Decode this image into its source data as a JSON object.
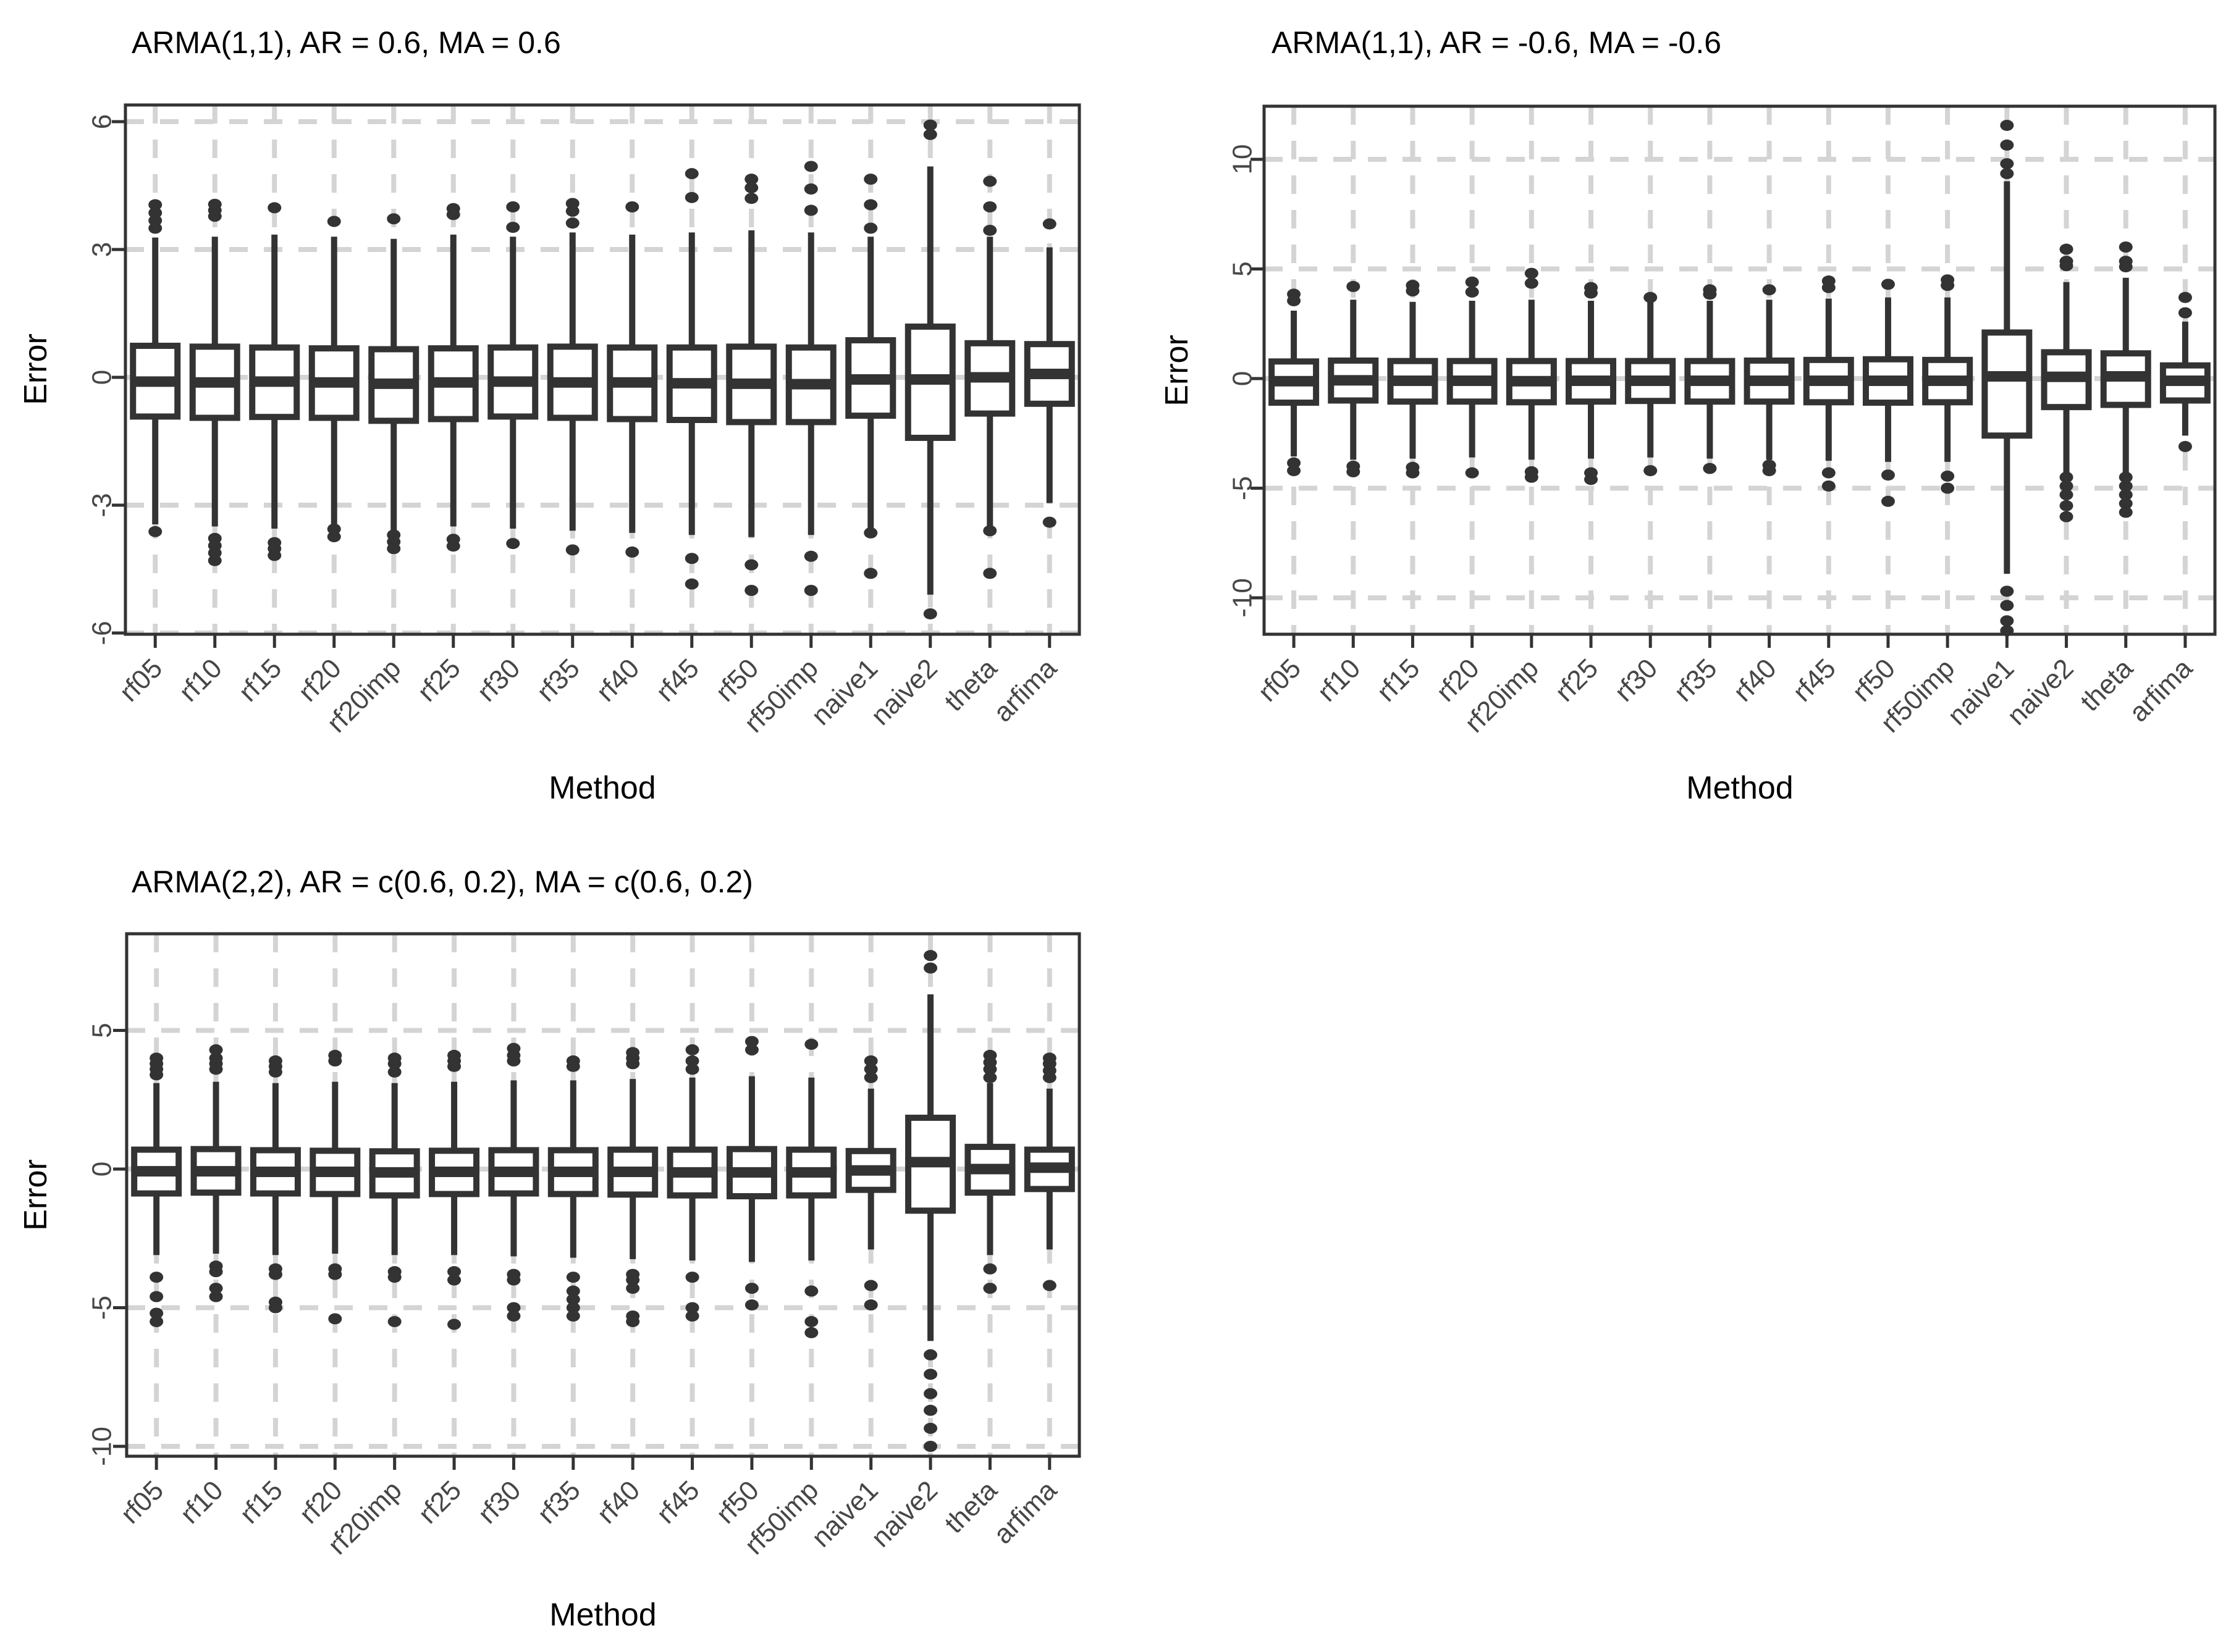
{
  "colors": {
    "box": "#333333",
    "grid": "#d4d4d4",
    "tick_label": "#464646",
    "text": "#000000",
    "background": "#ffffff"
  },
  "chart_data": [
    {
      "type": "boxplot",
      "title": "ARMA(1,1), AR = 0.6, MA = 0.6",
      "xlabel": "Method",
      "ylabel": "Error",
      "ylim": [
        -6.1,
        6.4
      ],
      "yticks": [
        6,
        3,
        0,
        -3,
        -6
      ],
      "grid": "dashed-major-both",
      "legend": "none",
      "categories": [
        "rf05",
        "rf10",
        "rf15",
        "rf20",
        "rf20imp",
        "rf25",
        "rf30",
        "rf35",
        "rf40",
        "rf45",
        "rf50",
        "rf50imp",
        "naive1",
        "naive2",
        "theta",
        "arfima"
      ],
      "boxes": [
        {
          "low": -3.45,
          "q1": -0.92,
          "median": -0.1,
          "q3": 0.74,
          "high": 3.28,
          "outliers": [
            3.5,
            3.68,
            3.86,
            4.05,
            -3.62
          ]
        },
        {
          "low": -3.5,
          "q1": -0.95,
          "median": -0.12,
          "q3": 0.72,
          "high": 3.3,
          "outliers": [
            3.78,
            3.92,
            4.06,
            -3.78,
            -3.95,
            -4.12,
            -4.3
          ]
        },
        {
          "low": -3.55,
          "q1": -0.93,
          "median": -0.1,
          "q3": 0.7,
          "high": 3.35,
          "outliers": [
            3.98,
            -3.88,
            -4.02,
            -4.18
          ]
        },
        {
          "low": -3.45,
          "q1": -0.95,
          "median": -0.12,
          "q3": 0.68,
          "high": 3.3,
          "outliers": [
            3.66,
            -3.56,
            -3.74
          ]
        },
        {
          "low": -3.6,
          "q1": -1.02,
          "median": -0.15,
          "q3": 0.66,
          "high": 3.25,
          "outliers": [
            3.72,
            -3.7,
            -3.86,
            -4.02
          ]
        },
        {
          "low": -3.5,
          "q1": -0.98,
          "median": -0.12,
          "q3": 0.68,
          "high": 3.35,
          "outliers": [
            3.82,
            3.96,
            -3.8,
            -3.96
          ]
        },
        {
          "low": -3.55,
          "q1": -0.92,
          "median": -0.1,
          "q3": 0.7,
          "high": 3.3,
          "outliers": [
            3.52,
            4.0,
            -3.9
          ]
        },
        {
          "low": -3.6,
          "q1": -0.95,
          "median": -0.12,
          "q3": 0.72,
          "high": 3.4,
          "outliers": [
            3.62,
            3.9,
            4.08,
            -4.05
          ]
        },
        {
          "low": -3.65,
          "q1": -0.98,
          "median": -0.12,
          "q3": 0.7,
          "high": 3.35,
          "outliers": [
            4.0,
            -4.1
          ]
        },
        {
          "low": -3.7,
          "q1": -1.0,
          "median": -0.14,
          "q3": 0.7,
          "high": 3.4,
          "outliers": [
            4.22,
            4.78,
            -4.25,
            -4.85
          ]
        },
        {
          "low": -3.75,
          "q1": -1.05,
          "median": -0.15,
          "q3": 0.72,
          "high": 3.45,
          "outliers": [
            4.2,
            4.45,
            4.65,
            -4.4,
            -5.0
          ]
        },
        {
          "low": -3.7,
          "q1": -1.05,
          "median": -0.16,
          "q3": 0.7,
          "high": 3.4,
          "outliers": [
            3.92,
            4.42,
            4.95,
            -4.2,
            -5.0
          ]
        },
        {
          "low": -3.55,
          "q1": -0.9,
          "median": -0.05,
          "q3": 0.87,
          "high": 3.3,
          "outliers": [
            3.5,
            4.05,
            4.65,
            -3.65,
            -4.6
          ]
        },
        {
          "low": -5.1,
          "q1": -1.42,
          "median": -0.05,
          "q3": 1.19,
          "high": 4.95,
          "outliers": [
            5.7,
            5.92,
            -5.55
          ]
        },
        {
          "low": -3.55,
          "q1": -0.85,
          "median": 0.0,
          "q3": 0.8,
          "high": 3.3,
          "outliers": [
            3.45,
            4.0,
            4.6,
            -3.6,
            -4.6
          ]
        },
        {
          "low": -2.95,
          "q1": -0.62,
          "median": 0.08,
          "q3": 0.78,
          "high": 3.05,
          "outliers": [
            3.6,
            -3.4
          ]
        }
      ]
    },
    {
      "type": "boxplot",
      "title": "ARMA(1,1), AR = -0.6, MA = -0.6",
      "xlabel": "Method",
      "ylabel": "Error",
      "ylim": [
        -11.7,
        12.4
      ],
      "yticks": [
        10,
        5,
        0,
        -5,
        -10
      ],
      "grid": "dashed-major-both",
      "legend": "none",
      "categories": [
        "rf05",
        "rf10",
        "rf15",
        "rf20",
        "rf20imp",
        "rf25",
        "rf30",
        "rf35",
        "rf40",
        "rf45",
        "rf50",
        "rf50imp",
        "naive1",
        "naive2",
        "theta",
        "arfima"
      ],
      "boxes": [
        {
          "low": -3.55,
          "q1": -1.1,
          "median": -0.12,
          "q3": 0.78,
          "high": 3.1,
          "outliers": [
            3.55,
            3.85,
            -3.85,
            -4.2
          ]
        },
        {
          "low": -3.7,
          "q1": -1.0,
          "median": -0.08,
          "q3": 0.82,
          "high": 3.6,
          "outliers": [
            4.2,
            -4.0,
            -4.25
          ]
        },
        {
          "low": -3.65,
          "q1": -1.05,
          "median": -0.1,
          "q3": 0.8,
          "high": 3.5,
          "outliers": [
            4.0,
            4.25,
            -4.05,
            -4.3
          ]
        },
        {
          "low": -3.6,
          "q1": -1.05,
          "median": -0.1,
          "q3": 0.8,
          "high": 3.55,
          "outliers": [
            3.95,
            4.4,
            -4.3
          ]
        },
        {
          "low": -3.7,
          "q1": -1.08,
          "median": -0.12,
          "q3": 0.8,
          "high": 3.6,
          "outliers": [
            4.35,
            4.8,
            -4.25,
            -4.5
          ]
        },
        {
          "low": -3.65,
          "q1": -1.05,
          "median": -0.1,
          "q3": 0.8,
          "high": 3.55,
          "outliers": [
            3.9,
            4.15,
            -4.3,
            -4.6
          ]
        },
        {
          "low": -3.6,
          "q1": -1.02,
          "median": -0.1,
          "q3": 0.8,
          "high": 3.5,
          "outliers": [
            3.7,
            -4.2
          ]
        },
        {
          "low": -3.65,
          "q1": -1.05,
          "median": -0.1,
          "q3": 0.8,
          "high": 3.55,
          "outliers": [
            3.85,
            4.05,
            -4.1
          ]
        },
        {
          "low": -3.7,
          "q1": -1.05,
          "median": -0.1,
          "q3": 0.82,
          "high": 3.6,
          "outliers": [
            4.05,
            -3.95,
            -4.2
          ]
        },
        {
          "low": -3.75,
          "q1": -1.08,
          "median": -0.1,
          "q3": 0.85,
          "high": 3.65,
          "outliers": [
            4.15,
            4.45,
            -4.3,
            -4.9
          ]
        },
        {
          "low": -3.8,
          "q1": -1.1,
          "median": -0.1,
          "q3": 0.88,
          "high": 3.7,
          "outliers": [
            4.3,
            -4.4,
            -5.6
          ]
        },
        {
          "low": -3.8,
          "q1": -1.08,
          "median": -0.1,
          "q3": 0.85,
          "high": 3.7,
          "outliers": [
            4.25,
            4.5,
            -4.45,
            -5.0
          ]
        },
        {
          "low": -8.9,
          "q1": -2.6,
          "median": 0.1,
          "q3": 2.1,
          "high": 9.0,
          "outliers": [
            9.35,
            9.8,
            10.65,
            11.55,
            -9.7,
            -10.35,
            -11.05,
            -11.5
          ]
        },
        {
          "low": -4.35,
          "q1": -1.3,
          "median": 0.08,
          "q3": 1.2,
          "high": 4.4,
          "outliers": [
            5.15,
            5.35,
            5.9,
            -4.5,
            -4.9,
            -5.3,
            -5.8,
            -6.3
          ]
        },
        {
          "low": -4.3,
          "q1": -1.2,
          "median": 0.1,
          "q3": 1.15,
          "high": 4.6,
          "outliers": [
            5.1,
            5.35,
            6.0,
            -4.5,
            -4.9,
            -5.3,
            -5.7,
            -6.1
          ]
        },
        {
          "low": -2.6,
          "q1": -1.0,
          "median": -0.1,
          "q3": 0.6,
          "high": 2.6,
          "outliers": [
            3.0,
            3.7,
            -3.1
          ]
        }
      ]
    },
    {
      "type": "boxplot",
      "title": "ARMA(2,2), AR = c(0.6, 0.2), MA = c(0.6, 0.2)",
      "xlabel": "Method",
      "ylabel": "Error",
      "ylim": [
        -10.4,
        8.5
      ],
      "yticks": [
        5,
        0,
        -5,
        -10
      ],
      "grid": "dashed-major-both",
      "legend": "none",
      "categories": [
        "rf05",
        "rf10",
        "rf15",
        "rf20",
        "rf20imp",
        "rf25",
        "rf30",
        "rf35",
        "rf40",
        "rf45",
        "rf50",
        "rf50imp",
        "naive1",
        "naive2",
        "theta",
        "arfima"
      ],
      "boxes": [
        {
          "low": -3.1,
          "q1": -0.88,
          "median": -0.08,
          "q3": 0.7,
          "high": 3.1,
          "outliers": [
            3.4,
            3.6,
            3.8,
            4.0,
            -3.9,
            -4.6,
            -5.2,
            -5.5
          ]
        },
        {
          "low": -3.05,
          "q1": -0.85,
          "median": -0.08,
          "q3": 0.72,
          "high": 3.15,
          "outliers": [
            3.6,
            3.8,
            4.0,
            4.3,
            -3.5,
            -3.7,
            -4.3,
            -4.6
          ]
        },
        {
          "low": -3.1,
          "q1": -0.88,
          "median": -0.1,
          "q3": 0.68,
          "high": 3.1,
          "outliers": [
            3.5,
            3.7,
            3.9,
            -3.6,
            -3.8,
            -4.8,
            -5.0
          ]
        },
        {
          "low": -3.05,
          "q1": -0.9,
          "median": -0.1,
          "q3": 0.66,
          "high": 3.15,
          "outliers": [
            3.9,
            4.1,
            -3.6,
            -3.8,
            -5.4
          ]
        },
        {
          "low": -3.1,
          "q1": -0.95,
          "median": -0.12,
          "q3": 0.64,
          "high": 3.1,
          "outliers": [
            3.5,
            3.8,
            4.0,
            -3.7,
            -3.9,
            -5.5
          ]
        },
        {
          "low": -3.1,
          "q1": -0.9,
          "median": -0.1,
          "q3": 0.66,
          "high": 3.15,
          "outliers": [
            3.7,
            3.9,
            4.1,
            -3.7,
            -4.0,
            -5.6
          ]
        },
        {
          "low": -3.15,
          "q1": -0.88,
          "median": -0.1,
          "q3": 0.68,
          "high": 3.2,
          "outliers": [
            3.9,
            4.1,
            4.35,
            -3.8,
            -4.0,
            -5.0,
            -5.3
          ]
        },
        {
          "low": -3.2,
          "q1": -0.9,
          "median": -0.1,
          "q3": 0.68,
          "high": 3.2,
          "outliers": [
            3.7,
            3.9,
            -3.9,
            -4.4,
            -4.7,
            -5.0,
            -5.3
          ]
        },
        {
          "low": -3.25,
          "q1": -0.92,
          "median": -0.1,
          "q3": 0.7,
          "high": 3.25,
          "outliers": [
            3.8,
            4.0,
            4.2,
            -3.8,
            -4.0,
            -4.3,
            -5.3,
            -5.5
          ]
        },
        {
          "low": -3.3,
          "q1": -0.95,
          "median": -0.12,
          "q3": 0.7,
          "high": 3.3,
          "outliers": [
            3.6,
            3.9,
            4.3,
            -3.9,
            -5.0,
            -5.3
          ]
        },
        {
          "low": -3.35,
          "q1": -0.98,
          "median": -0.12,
          "q3": 0.72,
          "high": 3.35,
          "outliers": [
            4.3,
            4.6,
            -4.3,
            -4.9
          ]
        },
        {
          "low": -3.3,
          "q1": -0.95,
          "median": -0.12,
          "q3": 0.7,
          "high": 3.3,
          "outliers": [
            4.5,
            -4.4,
            -5.5,
            -5.9
          ]
        },
        {
          "low": -2.9,
          "q1": -0.75,
          "median": -0.05,
          "q3": 0.65,
          "high": 2.9,
          "outliers": [
            3.3,
            3.6,
            3.9,
            -4.2,
            -4.9
          ]
        },
        {
          "low": -6.2,
          "q1": -1.5,
          "median": 0.25,
          "q3": 1.85,
          "high": 6.3,
          "outliers": [
            7.25,
            7.7,
            -6.7,
            -7.4,
            -8.1,
            -8.7,
            -9.35,
            -10.0
          ]
        },
        {
          "low": -3.1,
          "q1": -0.85,
          "median": 0.0,
          "q3": 0.8,
          "high": 3.1,
          "outliers": [
            3.3,
            3.6,
            3.85,
            4.1,
            -3.6,
            -4.3
          ]
        },
        {
          "low": -2.9,
          "q1": -0.72,
          "median": 0.05,
          "q3": 0.7,
          "high": 2.9,
          "outliers": [
            3.3,
            3.55,
            3.8,
            4.0,
            -4.2
          ]
        }
      ]
    }
  ]
}
